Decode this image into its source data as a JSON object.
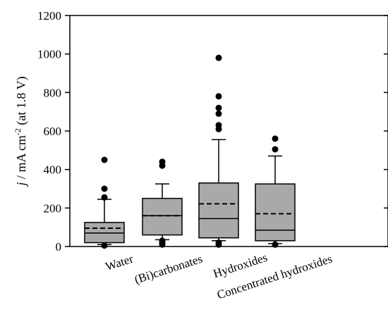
{
  "chart_data": {
    "type": "box",
    "ylabel": {
      "italic_part": "j",
      "unit_part": " / mA cm",
      "superscript": "-2",
      "suffix": " (at 1.8 V)"
    },
    "ylim": [
      0,
      1200
    ],
    "yticks": [
      "0",
      "200",
      "400",
      "600",
      "800",
      "1000",
      "1200"
    ],
    "grid": false,
    "colors": {
      "box_fill": "#a9a9a9",
      "stroke": "#000000",
      "outlier": "#000000"
    },
    "categories": [
      "Water",
      "(Bi)carbonates",
      "Hydroxides",
      "Concentrated hydroxides"
    ],
    "boxes": [
      {
        "category": "Water",
        "whisker_low": 10,
        "q1": 20,
        "median": 70,
        "mean": 95,
        "q3": 125,
        "whisker_high": 245,
        "outliers": [
          450,
          300,
          255,
          5
        ]
      },
      {
        "category": "(Bi)carbonates",
        "whisker_low": 35,
        "q1": 60,
        "median": 160,
        "mean": 160,
        "q3": 250,
        "whisker_high": 325,
        "outliers": [
          440,
          420,
          30,
          20,
          10
        ]
      },
      {
        "category": "Hydroxides",
        "whisker_low": 30,
        "q1": 45,
        "median": 145,
        "mean": 222,
        "q3": 330,
        "whisker_high": 555,
        "outliers": [
          980,
          780,
          720,
          690,
          630,
          610,
          20,
          10
        ]
      },
      {
        "category": "Concentrated hydroxides",
        "whisker_low": 15,
        "q1": 30,
        "median": 85,
        "mean": 170,
        "q3": 325,
        "whisker_high": 470,
        "outliers": [
          560,
          505,
          10
        ]
      }
    ]
  }
}
